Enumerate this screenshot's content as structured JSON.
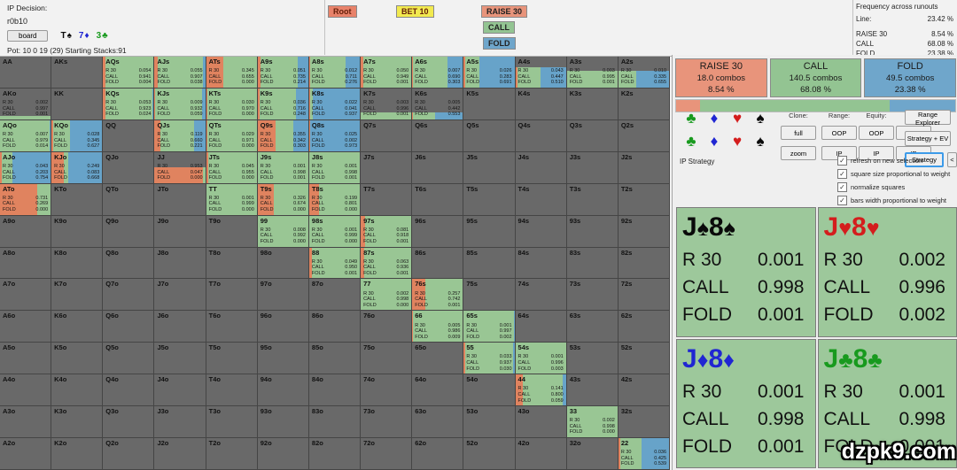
{
  "header": {
    "decision_label": "IP Decision:",
    "node": "r0b10",
    "board_button": "board",
    "board_cards": [
      {
        "card": "T♠",
        "suit": "spade"
      },
      {
        "card": "7♦",
        "suit": "diamond"
      },
      {
        "card": "3♣",
        "suit": "club"
      }
    ],
    "pot_line": "Pot: 10 0 19 (29) Starting Stacks:91",
    "tree": {
      "path": [
        {
          "label": "Root"
        },
        {
          "label": "BET 10"
        },
        {
          "label": "RAISE 30"
        }
      ],
      "siblings": [
        {
          "label": "CALL"
        },
        {
          "label": "FOLD"
        }
      ]
    },
    "frequency": {
      "title": "Frequency across runouts",
      "line_label": "Line:",
      "line_value": "23.42 %",
      "rows": [
        {
          "label": "RAISE 30",
          "value": "8.54 %"
        },
        {
          "label": "CALL",
          "value": "68.08 %"
        },
        {
          "label": "FOLD",
          "value": "23.38 %"
        }
      ]
    }
  },
  "grid": {
    "ranks": [
      "A",
      "K",
      "Q",
      "J",
      "T",
      "9",
      "8",
      "7",
      "6",
      "5",
      "4",
      "3",
      "2"
    ],
    "action_labels": [
      "R 30",
      "CALL",
      "FOLD"
    ],
    "colors": {
      "raise": "#e0835f",
      "call": "#99c694",
      "fold": "#67a3c9",
      "inactive": "#696969"
    },
    "cells": {
      "AQs": {
        "r": "0.054",
        "c": "0.941",
        "f": "0.004"
      },
      "AJs": {
        "r": "0.055",
        "c": "0.907",
        "f": "0.038"
      },
      "ATs": {
        "r": "0.345",
        "c": "0.655",
        "f": "0.000"
      },
      "A9s": {
        "r": "0.051",
        "c": "0.735",
        "f": "0.214"
      },
      "A8s": {
        "r": "0.012",
        "c": "0.711",
        "f": "0.276"
      },
      "A7s": {
        "r": "0.050",
        "c": "0.949",
        "f": "0.001"
      },
      "A6s": {
        "r": "0.007",
        "c": "0.690",
        "f": "0.303"
      },
      "A5s": {
        "r": "0.026",
        "c": "0.283",
        "f": "0.691"
      },
      "A4s": {
        "r": "0.043",
        "c": "0.447",
        "f": "0.510",
        "w": 0.65
      },
      "A3s": {
        "r": "0.003",
        "c": "0.995",
        "f": "0.001",
        "w": 0.55
      },
      "A2s": {
        "r": "0.010",
        "c": "0.335",
        "f": "0.655",
        "w": 0.55
      },
      "AKo": {
        "r": "0.002",
        "c": "0.997",
        "f": "0.001",
        "w": 0.12
      },
      "KQs": {
        "r": "0.053",
        "c": "0.923",
        "f": "0.024"
      },
      "KJs": {
        "r": "0.009",
        "c": "0.932",
        "f": "0.059"
      },
      "KTs": {
        "r": "0.030",
        "c": "0.970",
        "f": "0.000"
      },
      "K9s": {
        "r": "0.036",
        "c": "0.716",
        "f": "0.248"
      },
      "K8s": {
        "r": "0.022",
        "c": "0.041",
        "f": "0.937"
      },
      "K7s": {
        "r": "0.003",
        "c": "0.996",
        "f": "0.001",
        "w": 0.22
      },
      "K6s": {
        "r": "0.005",
        "c": "0.442",
        "f": "0.553",
        "w": 0.22
      },
      "AQo": {
        "r": "0.007",
        "c": "0.979",
        "f": "0.014"
      },
      "KQo": {
        "r": "0.028",
        "c": "0.345",
        "f": "0.627"
      },
      "QJs": {
        "r": "0.119",
        "c": "0.660",
        "f": "0.221"
      },
      "QTs": {
        "r": "0.029",
        "c": "0.971",
        "f": "0.000"
      },
      "Q9s": {
        "r": "0.355",
        "c": "0.342",
        "f": "0.303"
      },
      "Q8s": {
        "r": "0.025",
        "c": "0.002",
        "f": "0.973"
      },
      "AJo": {
        "r": "0.043",
        "c": "0.203",
        "f": "0.754"
      },
      "KJo": {
        "r": "0.249",
        "c": "0.083",
        "f": "0.668"
      },
      "JJ": {
        "r": "0.953",
        "c": "0.047",
        "f": "0.000",
        "w": 0.5
      },
      "JTs": {
        "r": "0.045",
        "c": "0.955",
        "f": "0.000"
      },
      "J9s": {
        "r": "0.001",
        "c": "0.998",
        "f": "0.001"
      },
      "J8s": {
        "r": "0.001",
        "c": "0.998",
        "f": "0.001",
        "sel": true
      },
      "ATo": {
        "r": "0.731",
        "c": "0.269",
        "f": "0.000"
      },
      "TT": {
        "r": "0.001",
        "c": "0.999",
        "f": "0.000"
      },
      "T9s": {
        "r": "0.326",
        "c": "0.674",
        "f": "0.000"
      },
      "T8s": {
        "r": "0.199",
        "c": "0.801",
        "f": "0.000"
      },
      "99": {
        "r": "0.008",
        "c": "0.992",
        "f": "0.000"
      },
      "98s": {
        "r": "0.001",
        "c": "0.999",
        "f": "0.000"
      },
      "97s": {
        "r": "0.081",
        "c": "0.918",
        "f": "0.001"
      },
      "88": {
        "r": "0.049",
        "c": "0.950",
        "f": "0.001"
      },
      "87s": {
        "r": "0.063",
        "c": "0.936",
        "f": "0.001"
      },
      "77": {
        "r": "0.002",
        "c": "0.998",
        "f": "0.000"
      },
      "76s": {
        "r": "0.257",
        "c": "0.742",
        "f": "0.001"
      },
      "66": {
        "r": "0.005",
        "c": "0.986",
        "f": "0.009"
      },
      "65s": {
        "r": "0.001",
        "c": "0.997",
        "f": "0.002"
      },
      "55": {
        "r": "0.033",
        "c": "0.937",
        "f": "0.030"
      },
      "54s": {
        "r": "0.001",
        "c": "0.996",
        "f": "0.003"
      },
      "44": {
        "r": "0.141",
        "c": "0.800",
        "f": "0.059"
      },
      "33": {
        "r": "0.002",
        "c": "0.998",
        "f": "0.000"
      },
      "22": {
        "r": "0.036",
        "c": "0.425",
        "f": "0.539"
      }
    }
  },
  "panel": {
    "summary": [
      {
        "label": "RAISE 30",
        "combos": "18.0 combos",
        "pct": "8.54 %",
        "pct_num": 8.54,
        "color": "#e8947b"
      },
      {
        "label": "CALL",
        "combos": "140.5 combos",
        "pct": "68.08 %",
        "pct_num": 68.08,
        "color": "#93c492"
      },
      {
        "label": "FOLD",
        "combos": "49.5 combos",
        "pct": "23.38 %",
        "pct_num": 23.38,
        "color": "#6fa6cb"
      }
    ],
    "suits": [
      {
        "name": "club",
        "glyph": "♣"
      },
      {
        "name": "diamond",
        "glyph": "♦"
      },
      {
        "name": "heart",
        "glyph": "♥"
      },
      {
        "name": "spade",
        "glyph": "♠"
      }
    ],
    "controls": {
      "columns": [
        {
          "label": "Clone:",
          "buttons": [
            "full",
            "zoom"
          ]
        },
        {
          "label": "Range:",
          "buttons": [
            "OOP",
            "IP"
          ]
        },
        {
          "label": "Equity:",
          "buttons": [
            "OOP",
            "IP"
          ]
        },
        {
          "label": "EV:",
          "buttons": [
            "OOP",
            "IP"
          ]
        }
      ],
      "right_buttons": [
        "Range Explorer",
        "Strategy + EV",
        "Strategy"
      ],
      "active_button": "Strategy",
      "collapse_button": "<"
    },
    "strategy_label": "IP Strategy",
    "checkboxes": [
      {
        "label": "refresh on new selection",
        "checked": true
      },
      {
        "label": "square size proportional to weight",
        "checked": true
      },
      {
        "label": "normalize squares",
        "checked": true
      },
      {
        "label": "bars width proportional to weight",
        "checked": true
      }
    ],
    "detail": {
      "combos": [
        {
          "cards": "J♠8♠",
          "suit": "spade",
          "rows": [
            [
              "R 30",
              "0.001"
            ],
            [
              "CALL",
              "0.998"
            ],
            [
              "FOLD",
              "0.001"
            ]
          ]
        },
        {
          "cards": "J♥8♥",
          "suit": "heart",
          "rows": [
            [
              "R 30",
              "0.002"
            ],
            [
              "CALL",
              "0.996"
            ],
            [
              "FOLD",
              "0.002"
            ]
          ]
        },
        {
          "cards": "J♦8♦",
          "suit": "diamond",
          "rows": [
            [
              "R 30",
              "0.001"
            ],
            [
              "CALL",
              "0.998"
            ],
            [
              "FOLD",
              "0.001"
            ]
          ]
        },
        {
          "cards": "J♣8♣",
          "suit": "club",
          "rows": [
            [
              "R 30",
              "0.001"
            ],
            [
              "CALL",
              "0.998"
            ],
            [
              "FOLD",
              "0.001"
            ]
          ]
        }
      ]
    },
    "watermark": "dzpk9.com"
  }
}
